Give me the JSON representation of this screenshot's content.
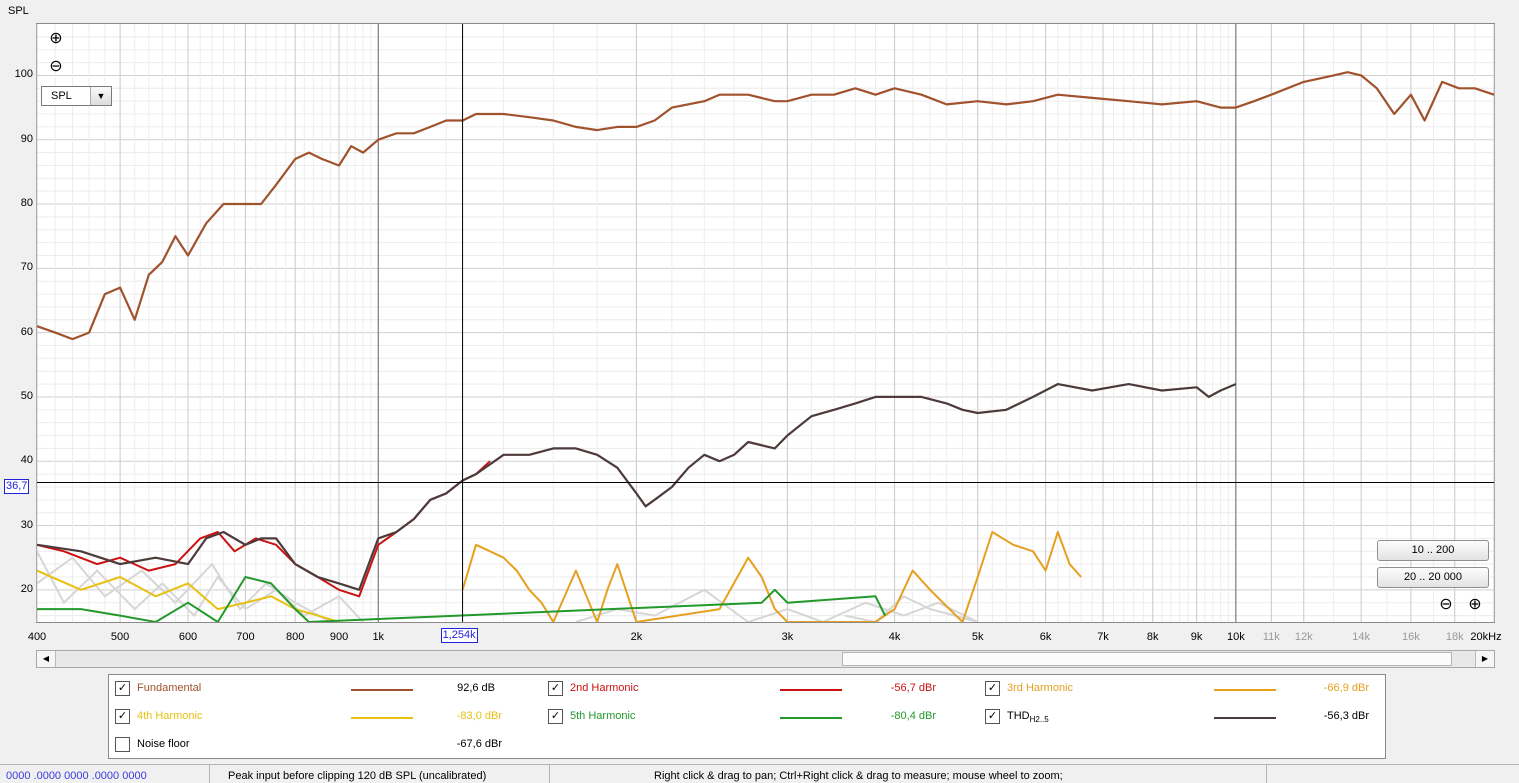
{
  "chart_data": {
    "type": "line",
    "ylabel": "SPL",
    "y_unit_selector": "SPL",
    "xscale": "log",
    "xlim": [
      400,
      20000
    ],
    "ylim": [
      15,
      108
    ],
    "y_ticks": [
      20,
      30,
      40,
      50,
      60,
      70,
      80,
      90,
      100
    ],
    "y_tick_labels": [
      "20",
      "30",
      "40",
      "50",
      "60",
      "70",
      "80",
      "90",
      "100"
    ],
    "x_ticks": [
      400,
      500,
      600,
      700,
      800,
      900,
      1000,
      2000,
      3000,
      4000,
      5000,
      6000,
      7000,
      8000,
      9000,
      10000,
      11000,
      12000,
      14000,
      16000,
      18000,
      20000
    ],
    "x_tick_labels": [
      "400",
      "500",
      "600",
      "700",
      "800",
      "900",
      "1k",
      "2k",
      "3k",
      "4k",
      "5k",
      "6k",
      "7k",
      "8k",
      "9k",
      "10k",
      "11k",
      "12k",
      "14k",
      "16k",
      "18k",
      "20kHz"
    ],
    "x_faint_from": 11000,
    "major_grid_x": [
      1000,
      10000
    ],
    "cursor": {
      "x": 1254,
      "x_label": "1,254k",
      "y": 36.7,
      "y_label": "36,7"
    },
    "series": [
      {
        "name": "Fundamental",
        "color": "#a0522d",
        "x": [
          400,
          420,
          440,
          460,
          480,
          500,
          520,
          540,
          560,
          580,
          600,
          630,
          660,
          700,
          730,
          760,
          800,
          830,
          860,
          900,
          930,
          960,
          1000,
          1050,
          1100,
          1150,
          1200,
          1254,
          1300,
          1400,
          1500,
          1600,
          1700,
          1800,
          1900,
          2000,
          2100,
          2200,
          2400,
          2500,
          2700,
          2900,
          3000,
          3200,
          3400,
          3600,
          3800,
          4000,
          4300,
          4600,
          5000,
          5400,
          5800,
          6200,
          6800,
          7500,
          8200,
          9000,
          9600,
          10000,
          10500,
          11000,
          12000,
          13000,
          13500,
          14000,
          14600,
          15300,
          16000,
          16600,
          17400,
          18200,
          19000,
          20000
        ],
        "y": [
          61,
          60,
          59,
          60,
          66,
          67,
          62,
          69,
          71,
          75,
          72,
          77,
          80,
          80,
          80,
          83,
          87,
          88,
          87,
          86,
          89,
          88,
          90,
          91,
          91,
          92,
          93,
          93,
          94,
          94,
          93.5,
          93,
          92,
          91.5,
          92,
          92,
          93,
          95,
          96,
          97,
          97,
          96,
          96,
          97,
          97,
          98,
          97,
          98,
          97,
          95.5,
          96,
          95.5,
          96,
          97,
          96.5,
          96,
          95.5,
          96,
          95,
          95,
          96,
          97,
          99,
          100,
          100.5,
          100,
          98,
          94,
          97,
          93,
          99,
          98,
          98,
          97
        ]
      },
      {
        "name": "2nd Harmonic",
        "color": "#cc1111",
        "x": [
          400,
          430,
          470,
          500,
          540,
          580,
          620,
          650,
          680,
          720,
          760,
          800,
          850,
          900,
          950,
          1000,
          1050,
          1100,
          1150,
          1200,
          1254,
          1300,
          1350
        ],
        "y": [
          27,
          26,
          24,
          25,
          23,
          24,
          28,
          29,
          26,
          28,
          27,
          24,
          22,
          20,
          19,
          27,
          29,
          31,
          34,
          35,
          37,
          38,
          40
        ]
      },
      {
        "name": "3rd Harmonic",
        "color": "#e6a020",
        "x": [
          1254,
          1300,
          1350,
          1400,
          1450,
          1500,
          1550,
          1600,
          1700,
          1800,
          1850,
          1900,
          2000,
          2500,
          2700,
          2800,
          2900,
          3000,
          3300,
          3600,
          3800,
          4000,
          4200,
          4400,
          4800,
          5000,
          5200,
          5500,
          5800,
          6000,
          6200,
          6400,
          6600
        ],
        "y": [
          20,
          27,
          26,
          25,
          23,
          20,
          18,
          15,
          23,
          15,
          20,
          24,
          15,
          17,
          25,
          22,
          17,
          15,
          15,
          15,
          15,
          17,
          23,
          20,
          15,
          22,
          29,
          27,
          26,
          23,
          29,
          24,
          22
        ]
      },
      {
        "name": "4th Harmonic",
        "color": "#e8c010",
        "x": [
          400,
          450,
          500,
          550,
          600,
          650,
          700,
          750,
          800,
          850,
          900
        ],
        "y": [
          23,
          20,
          22,
          19,
          21,
          17,
          18,
          19,
          17,
          16,
          15
        ]
      },
      {
        "name": "5th Harmonic",
        "color": "#22992a",
        "x": [
          400,
          450,
          500,
          550,
          600,
          650,
          700,
          750,
          800,
          830,
          2800,
          2900,
          3000,
          3800,
          3900
        ],
        "y": [
          17,
          17,
          16,
          15,
          18,
          15,
          22,
          21,
          17,
          15,
          18,
          20,
          18,
          19,
          16
        ]
      },
      {
        "name": "THD",
        "color": "#4d3a3a",
        "x": [
          400,
          450,
          500,
          550,
          600,
          630,
          660,
          700,
          730,
          760,
          800,
          850,
          900,
          950,
          1000,
          1050,
          1100,
          1150,
          1200,
          1254,
          1300,
          1400,
          1500,
          1600,
          1700,
          1800,
          1900,
          2000,
          2050,
          2100,
          2200,
          2300,
          2400,
          2500,
          2600,
          2700,
          2900,
          3000,
          3200,
          3400,
          3600,
          3800,
          4000,
          4300,
          4600,
          4800,
          5000,
          5400,
          5800,
          6200,
          6800,
          7500,
          8200,
          9000,
          9300,
          9600,
          10000
        ],
        "y": [
          27,
          26,
          24,
          25,
          24,
          28,
          29,
          27,
          28,
          28,
          24,
          22,
          21,
          20,
          28,
          29,
          31,
          34,
          35,
          37,
          38,
          41,
          41,
          42,
          42,
          41,
          39,
          35,
          33,
          34,
          36,
          39,
          41,
          40,
          41,
          43,
          42,
          44,
          47,
          48,
          49,
          50,
          50,
          50,
          49,
          48,
          47.5,
          48,
          50,
          52,
          51,
          52,
          51,
          51.5,
          50,
          51,
          52
        ]
      }
    ],
    "noise": {
      "name": "Noise floor",
      "color": "#d6d6d6"
    }
  },
  "legend": {
    "items": [
      {
        "name": "Fundamental",
        "sub": "",
        "value": "92,6 dB",
        "color": "#a0522d",
        "checked": true
      },
      {
        "name": "2nd Harmonic",
        "sub": "",
        "value": "-56,7 dBr",
        "color": "#cc1111",
        "checked": true
      },
      {
        "name": "3rd Harmonic",
        "sub": "",
        "value": "-66,9 dBr",
        "color": "#e6a020",
        "checked": true
      },
      {
        "name": "4th Harmonic",
        "sub": "",
        "value": "-83,0 dBr",
        "color": "#e8c010",
        "checked": true
      },
      {
        "name": "5th Harmonic",
        "sub": "",
        "value": "-80,4 dBr",
        "color": "#22992a",
        "checked": true
      },
      {
        "name": "THD",
        "sub": "H2..5",
        "value": "-56,3 dBr",
        "color": "#4d3a3a",
        "checked": true
      },
      {
        "name": "Noise floor",
        "sub": "",
        "value": "-67,6 dBr",
        "color": "#000000",
        "checked": false
      }
    ],
    "checkmark": "✓"
  },
  "controls": {
    "range_btn_1": "10 .. 200",
    "range_btn_2": "20 .. 20 000",
    "zoom_in_icon": "⊕",
    "zoom_out_icon": "⊖",
    "scroll_left": "◀",
    "scroll_right": "▶",
    "dropdown_arrow": "▼"
  },
  "status": {
    "coords": "0000 .0000 0000 .0000 0000",
    "peak": "Peak input before clipping 120 dB SPL (uncalibrated)",
    "hint": "Right click & drag to pan; Ctrl+Right click & drag to measure; mouse wheel to zoom;"
  }
}
